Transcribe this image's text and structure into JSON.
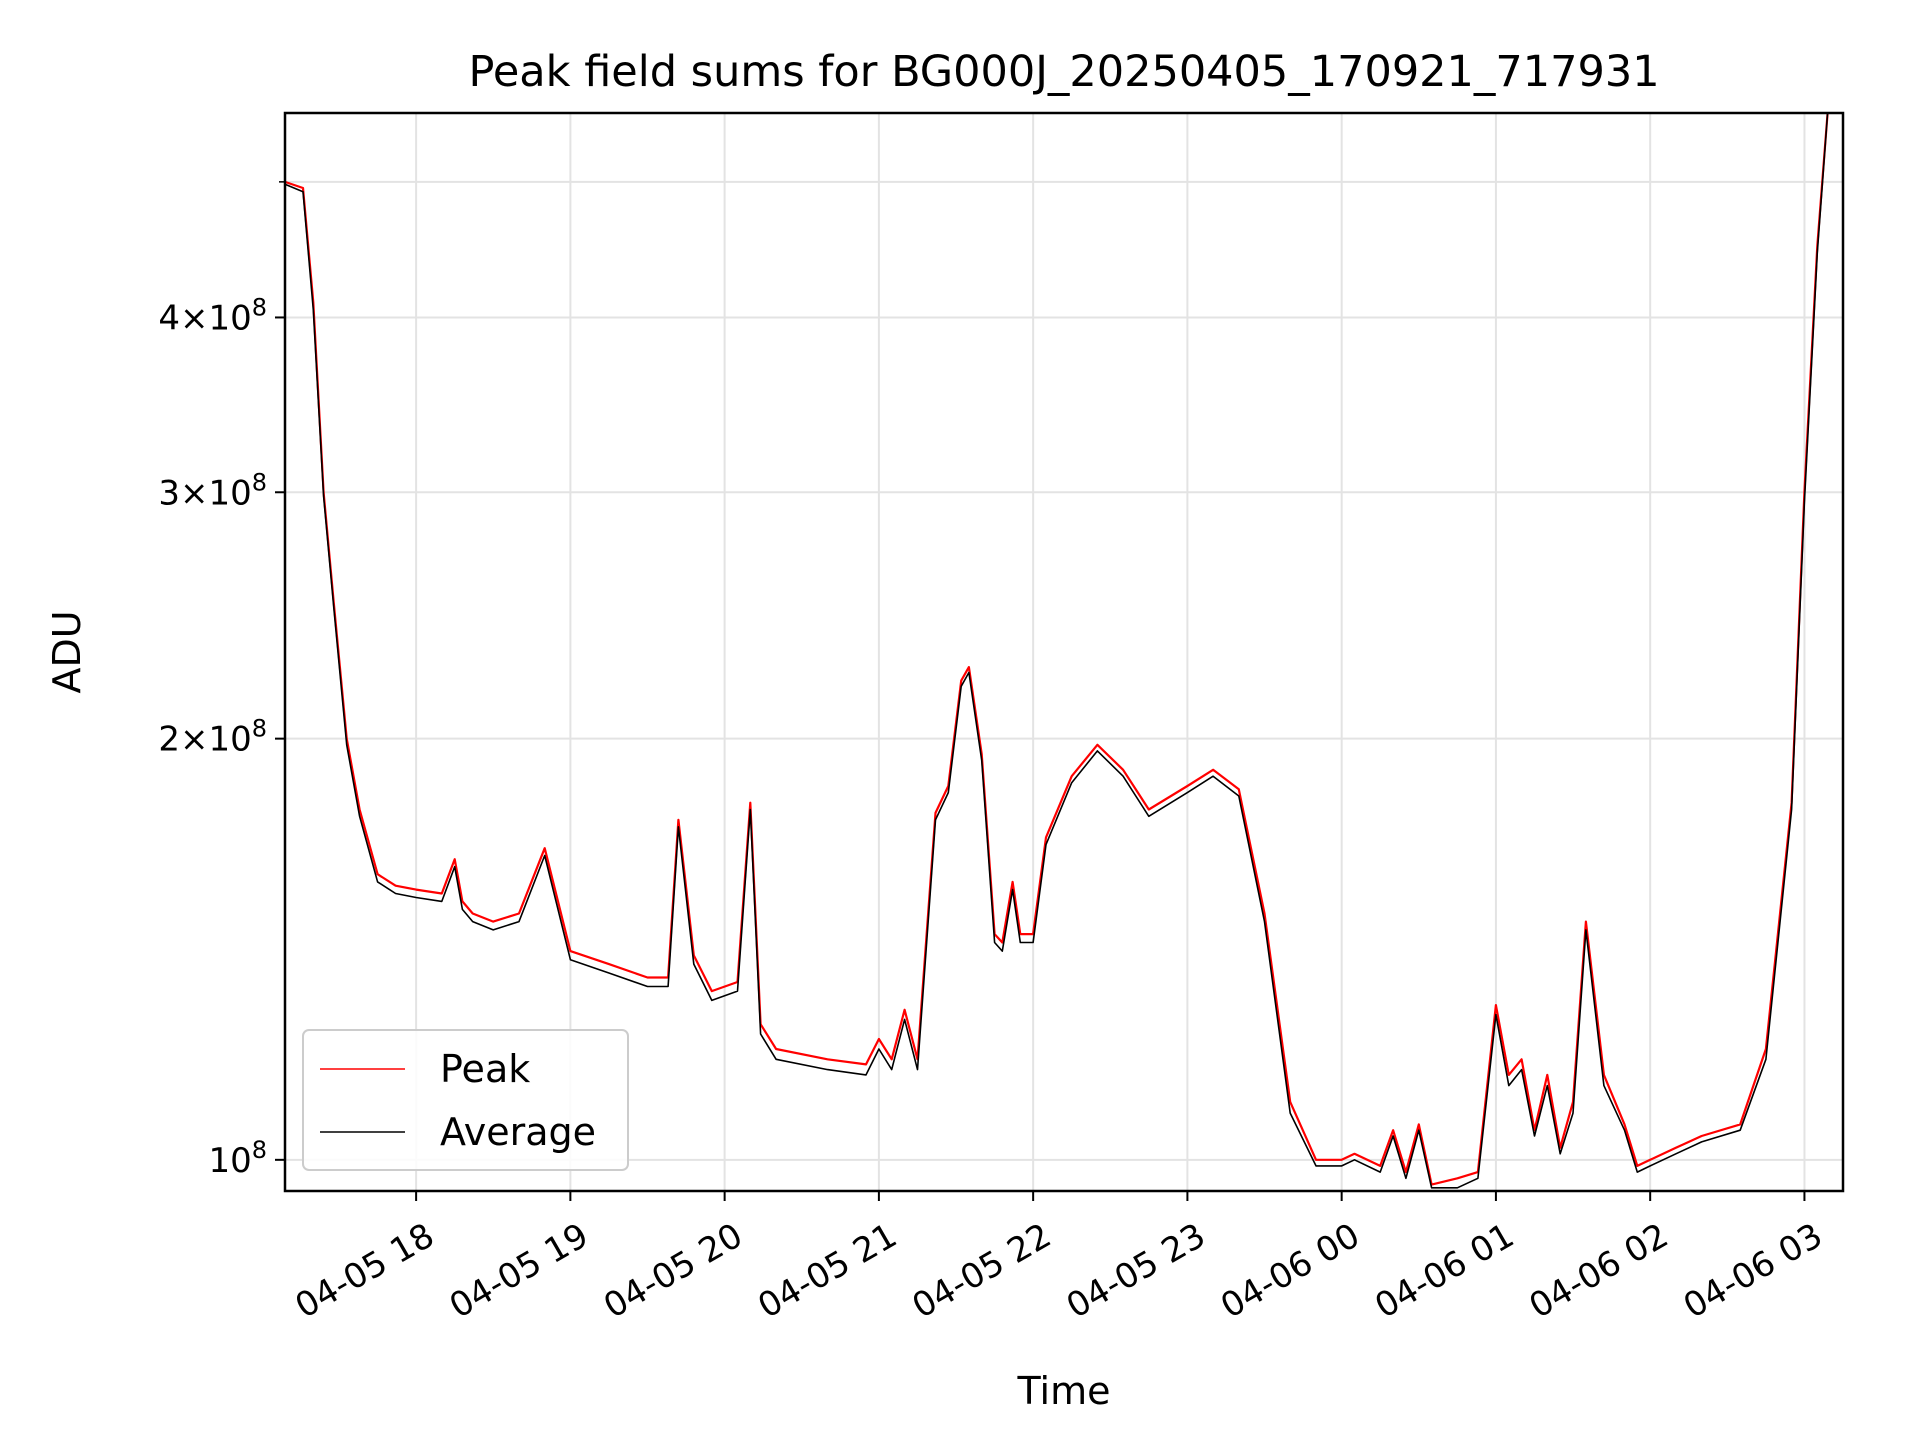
{
  "chart_data": {
    "type": "line",
    "title": "Peak field sums for BG000J_20250405_170921_717931",
    "xlabel": "Time",
    "ylabel": "ADU",
    "y_scale": "log",
    "xlim": [
      "04-05 17:09",
      "04-06 03:15"
    ],
    "ylim": [
      95000000.0,
      560000000.0
    ],
    "grid": true,
    "legend": {
      "placement": "lower-left"
    },
    "x_ticks": [
      "04-05 18",
      "04-05 19",
      "04-05 20",
      "04-05 21",
      "04-05 22",
      "04-05 23",
      "04-06 00",
      "04-06 01",
      "04-06 02",
      "04-06 03"
    ],
    "y_ticks": [
      {
        "value": 100000000.0,
        "base": "10",
        "exp": "8"
      },
      {
        "value": 200000000.0,
        "mant": "2",
        "base": "10",
        "exp": "8"
      },
      {
        "value": 300000000.0,
        "mant": "3",
        "base": "10",
        "exp": "8"
      },
      {
        "value": 400000000.0,
        "mant": "4",
        "base": "10",
        "exp": "8"
      }
    ],
    "x": [
      "04-05 17:09",
      "04-05 17:16",
      "04-05 17:20",
      "04-05 17:24",
      "04-05 17:28",
      "04-05 17:33",
      "04-05 17:38",
      "04-05 17:45",
      "04-05 17:52",
      "04-05 18:00",
      "04-05 18:10",
      "04-05 18:15",
      "04-05 18:18",
      "04-05 18:22",
      "04-05 18:30",
      "04-05 18:40",
      "04-05 18:50",
      "04-05 19:00",
      "04-05 19:15",
      "04-05 19:30",
      "04-05 19:38",
      "04-05 19:42",
      "04-05 19:48",
      "04-05 19:55",
      "04-05 20:05",
      "04-05 20:10",
      "04-05 20:14",
      "04-05 20:20",
      "04-05 20:40",
      "04-05 20:55",
      "04-05 21:00",
      "04-05 21:05",
      "04-05 21:10",
      "04-05 21:15",
      "04-05 21:22",
      "04-05 21:27",
      "04-05 21:32",
      "04-05 21:35",
      "04-05 21:40",
      "04-05 21:45",
      "04-05 21:48",
      "04-05 21:52",
      "04-05 21:55",
      "04-05 22:00",
      "04-05 22:05",
      "04-05 22:15",
      "04-05 22:25",
      "04-05 22:35",
      "04-05 22:45",
      "04-05 23:00",
      "04-05 23:10",
      "04-05 23:20",
      "04-05 23:30",
      "04-05 23:40",
      "04-05 23:50",
      "04-06 00:00",
      "04-06 00:05",
      "04-06 00:15",
      "04-06 00:20",
      "04-06 00:25",
      "04-06 00:30",
      "04-06 00:35",
      "04-06 00:45",
      "04-06 00:53",
      "04-06 01:00",
      "04-06 01:05",
      "04-06 01:10",
      "04-06 01:15",
      "04-06 01:20",
      "04-06 01:25",
      "04-06 01:30",
      "04-06 01:35",
      "04-06 01:42",
      "04-06 01:50",
      "04-06 01:55",
      "04-06 02:00",
      "04-06 02:10",
      "04-06 02:20",
      "04-06 02:35",
      "04-06 02:45",
      "04-06 02:55",
      "04-06 03:00",
      "04-06 03:05",
      "04-06 03:09"
    ],
    "series": [
      {
        "name": "Peak",
        "color": "#ff0000",
        "values": [
          500000000.0,
          495000000.0,
          410000000.0,
          300000000.0,
          250000000.0,
          200000000.0,
          178000000.0,
          160000000.0,
          157000000.0,
          156000000.0,
          155000000.0,
          164000000.0,
          153000000.0,
          150000000.0,
          148000000.0,
          150000000.0,
          167000000.0,
          141000000.0,
          138000000.0,
          135000000.0,
          135000000.0,
          175000000.0,
          140000000.0,
          132000000.0,
          134000000.0,
          180000000.0,
          125000000.0,
          120000000.0,
          118000000.0,
          117000000.0,
          122000000.0,
          118000000.0,
          128000000.0,
          118000000.0,
          177000000.0,
          185000000.0,
          220000000.0,
          225000000.0,
          195000000.0,
          145000000.0,
          143000000.0,
          158000000.0,
          145000000.0,
          145000000.0,
          170000000.0,
          188000000.0,
          198000000.0,
          190000000.0,
          178000000.0,
          185000000.0,
          190000000.0,
          184000000.0,
          150000000.0,
          110000000.0,
          100000000.0,
          100000000.0,
          101000000.0,
          99000000.0,
          105000000.0,
          98000000.0,
          106000000.0,
          96000000.0,
          97000000.0,
          98000000.0,
          129000000.0,
          115000000.0,
          118000000.0,
          105000000.0,
          115000000.0,
          102000000.0,
          110000000.0,
          148000000.0,
          115000000.0,
          106000000.0,
          99000000.0,
          100000000.0,
          102000000.0,
          104000000.0,
          106000000.0,
          120000000.0,
          180000000.0,
          300000000.0,
          450000000.0,
          560000000.0
        ]
      },
      {
        "name": "Average",
        "color": "#000000",
        "values": [
          498000000.0,
          492000000.0,
          405000000.0,
          298000000.0,
          248000000.0,
          198000000.0,
          176000000.0,
          158000000.0,
          155000000.0,
          154000000.0,
          153000000.0,
          162000000.0,
          151000000.0,
          148000000.0,
          146000000.0,
          148000000.0,
          165000000.0,
          139000000.0,
          136000000.0,
          133000000.0,
          133000000.0,
          173000000.0,
          138000000.0,
          130000000.0,
          132000000.0,
          178000000.0,
          123000000.0,
          118000000.0,
          116000000.0,
          115000000.0,
          120000000.0,
          116000000.0,
          126000000.0,
          116000000.0,
          175000000.0,
          183000000.0,
          218000000.0,
          223000000.0,
          193000000.0,
          143000000.0,
          141000000.0,
          156000000.0,
          143000000.0,
          143000000.0,
          168000000.0,
          186000000.0,
          196000000.0,
          188000000.0,
          176000000.0,
          183000000.0,
          188000000.0,
          182000000.0,
          148000000.0,
          108000000.0,
          99000000.0,
          99000000.0,
          100000000.0,
          98000000.0,
          104000000.0,
          97000000.0,
          105000000.0,
          95500000.0,
          95500000.0,
          97000000.0,
          127000000.0,
          113000000.0,
          116000000.0,
          104000000.0,
          113000000.0,
          101000000.0,
          108000000.0,
          146000000.0,
          113000000.0,
          105000000.0,
          98000000.0,
          99000000.0,
          101000000.0,
          103000000.0,
          105000000.0,
          118000000.0,
          178000000.0,
          295000000.0,
          445000000.0,
          560000000.0
        ]
      }
    ]
  }
}
